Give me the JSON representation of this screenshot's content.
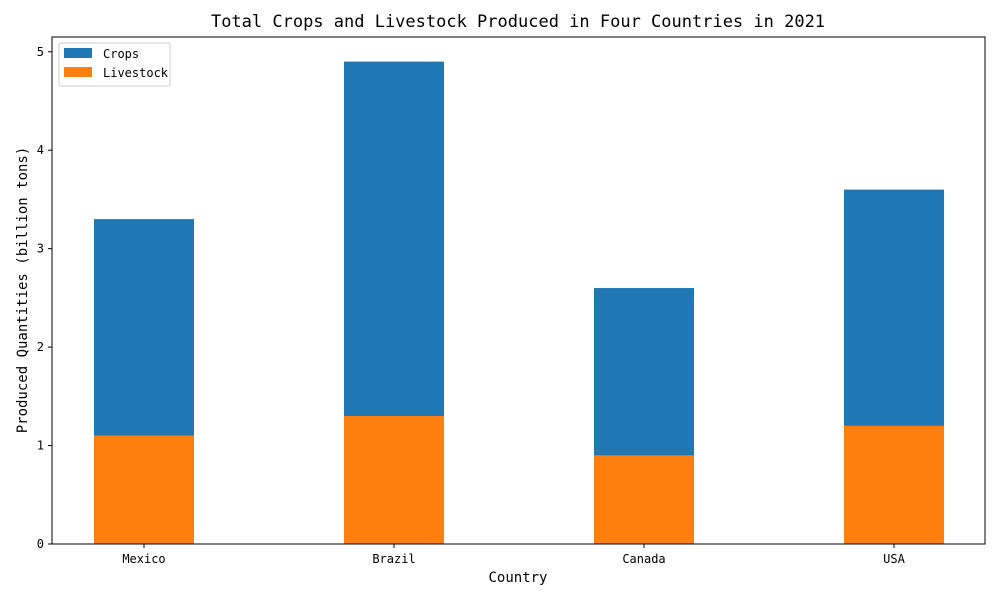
{
  "chart_data": {
    "type": "bar",
    "stacked": true,
    "title": "Total Crops and Livestock Produced in Four Countries in 2021",
    "xlabel": "Country",
    "ylabel": "Produced Quantities (billion tons)",
    "categories": [
      "Mexico",
      "Brazil",
      "Canada",
      "USA"
    ],
    "series": [
      {
        "name": "Livestock",
        "values": [
          1.1,
          1.3,
          0.9,
          1.2
        ],
        "color": "#ff7f0e"
      },
      {
        "name": "Crops",
        "values": [
          2.2,
          3.6,
          1.7,
          2.4
        ],
        "color": "#1f77b4"
      }
    ],
    "ylim": [
      0,
      5.15
    ],
    "yticks": [
      0,
      1,
      2,
      3,
      4,
      5
    ],
    "legend": {
      "placement": "top-left",
      "entries": [
        {
          "name": "Crops",
          "color": "#1f77b4"
        },
        {
          "name": "Livestock",
          "color": "#ff7f0e"
        }
      ]
    },
    "grid": false
  }
}
